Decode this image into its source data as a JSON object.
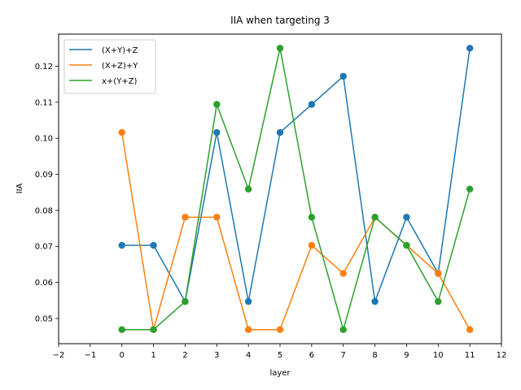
{
  "chart_data": {
    "type": "line",
    "title": "IIA when targeting 3",
    "xlabel": "layer",
    "ylabel": "IIA",
    "x": [
      0,
      1,
      2,
      3,
      4,
      5,
      6,
      7,
      8,
      9,
      10,
      11
    ],
    "xlim": [
      -2,
      12
    ],
    "ylim": [
      0.043,
      0.1289
    ],
    "xticks": [
      -2,
      -1,
      0,
      1,
      2,
      3,
      4,
      5,
      6,
      7,
      8,
      9,
      10,
      11,
      12
    ],
    "yticks": [
      0.05,
      0.06,
      0.07,
      0.08,
      0.09,
      0.1,
      0.11,
      0.12
    ],
    "ytick_labels": [
      "0.05",
      "0.06",
      "0.07",
      "0.08",
      "0.09",
      "0.10",
      "0.11",
      "0.12"
    ],
    "grid": false,
    "legend_position": "top-left",
    "markers": true,
    "series": [
      {
        "name": "(X+Y)+Z",
        "color": "#1f77b4",
        "values": [
          0.0703,
          0.0703,
          0.0547,
          0.1016,
          0.0547,
          0.1016,
          0.1094,
          0.1172,
          0.0547,
          0.0781,
          0.0625,
          0.125
        ]
      },
      {
        "name": "(X+Z)+Y",
        "color": "#ff7f0e",
        "values": [
          0.1016,
          0.0469,
          0.0781,
          0.0781,
          0.0469,
          0.0469,
          0.0703,
          0.0625,
          0.0781,
          0.0703,
          0.0625,
          0.0469
        ]
      },
      {
        "name": "x+(Y+Z)",
        "color": "#2ca02c",
        "values": [
          0.0469,
          0.0469,
          0.0547,
          0.1094,
          0.0859,
          0.125,
          0.0781,
          0.0469,
          0.0781,
          0.0703,
          0.0547,
          0.0859
        ]
      }
    ]
  }
}
